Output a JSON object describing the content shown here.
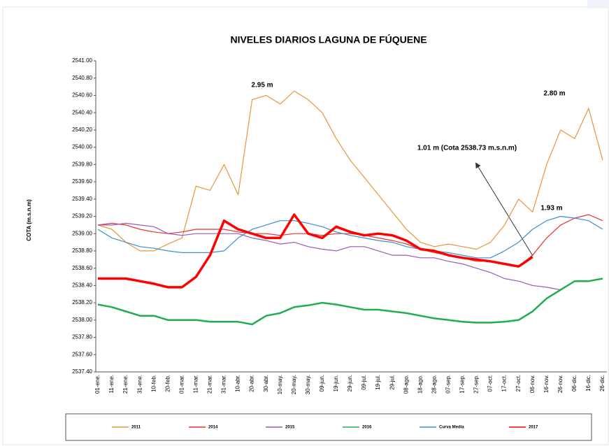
{
  "chart_data": {
    "type": "line",
    "title": "NIVELES DIARIOS LAGUNA DE FÚQUENE",
    "y_label": "COTA (m.s.n.m)",
    "annotations": [
      "2.95 m",
      "2.80 m",
      "1.01 m (Cota 2538.73 m.s.n.m)",
      "1.93 m"
    ],
    "categories": [
      "01-ene.",
      "11-ene.",
      "21-ene.",
      "31-ene.",
      "10-feb.",
      "20-feb.",
      "01-mar.",
      "11-mar.",
      "21-mar.",
      "31-mar.",
      "10-abr.",
      "20-abr.",
      "30-abr.",
      "10-may.",
      "20-may.",
      "30-may.",
      "09-jun.",
      "19-jun.",
      "29-jun.",
      "09-jul.",
      "19-jul.",
      "29-jul.",
      "08-ago.",
      "18-ago.",
      "28-ago.",
      "07-sep.",
      "17-sep.",
      "27-sep.",
      "07-oct.",
      "17-oct.",
      "27-oct.",
      "06-nov.",
      "16-nov.",
      "26-nov.",
      "06-dic.",
      "16-dic.",
      "26-dic."
    ],
    "ylim": [
      2537.4,
      2541.0
    ],
    "yticks": [
      {
        "value": 2537.4,
        "label": "2537.40"
      },
      {
        "value": 2537.6,
        "label": "2537.60"
      },
      {
        "value": 2537.8,
        "label": "2537.80"
      },
      {
        "value": 2538.0,
        "label": "2538.00"
      },
      {
        "value": 2538.2,
        "label": "2538.20"
      },
      {
        "value": 2538.4,
        "label": "2538.40"
      },
      {
        "value": 2538.6,
        "label": "2538.60"
      },
      {
        "value": 2538.8,
        "label": "2538.80"
      },
      {
        "value": 2539.0,
        "label": "2539.00"
      },
      {
        "value": 2539.2,
        "label": "2539.20"
      },
      {
        "value": 2539.4,
        "label": "2539.40"
      },
      {
        "value": 2539.6,
        "label": "2539.60"
      },
      {
        "value": 2539.8,
        "label": "2539.80"
      },
      {
        "value": 2540.0,
        "label": "2540.00"
      },
      {
        "value": 2540.2,
        "label": "2540.20"
      },
      {
        "value": 2540.4,
        "label": "2540.40"
      },
      {
        "value": 2540.6,
        "label": "2540.60"
      },
      {
        "value": 2540.8,
        "label": "2540.80"
      },
      {
        "value": 2541.0,
        "label": "2541.00"
      }
    ],
    "grid": false,
    "legend": "bottom",
    "series": [
      {
        "name": "2011",
        "color": "#e8963c",
        "width": 1.2,
        "values": [
          2539.1,
          2539.05,
          2538.9,
          2538.8,
          2538.8,
          2538.88,
          2538.95,
          2539.55,
          2539.5,
          2539.8,
          2539.45,
          2540.55,
          2540.6,
          2540.5,
          2540.65,
          2540.55,
          2540.4,
          2540.1,
          2539.85,
          2539.65,
          2539.45,
          2539.25,
          2539.05,
          2538.9,
          2538.85,
          2538.88,
          2538.85,
          2538.82,
          2538.9,
          2539.1,
          2539.4,
          2539.25,
          2539.8,
          2540.2,
          2540.1,
          2540.45,
          2539.85
        ]
      },
      {
        "name": "2014",
        "color": "#e8312e",
        "width": 1.2,
        "values": [
          2539.1,
          2539.12,
          2539.1,
          2539.05,
          2539.02,
          2539.0,
          2539.02,
          2539.05,
          2539.05,
          2539.05,
          2539.02,
          2539.0,
          2539.0,
          2538.98,
          2539.0,
          2539.0,
          2538.98,
          2539.0,
          2539.0,
          2538.98,
          2538.95,
          2538.92,
          2538.88,
          2538.82,
          2538.78,
          2538.75,
          2538.72,
          2538.68,
          2538.68,
          2538.65,
          2538.62,
          2538.75,
          2538.95,
          2539.1,
          2539.18,
          2539.22,
          2539.15
        ]
      },
      {
        "name": "2015",
        "color": "#9b59b6",
        "width": 1.2,
        "values": [
          2539.1,
          2539.1,
          2539.12,
          2539.1,
          2539.08,
          2539.0,
          2538.98,
          2539.0,
          2539.0,
          2539.0,
          2539.0,
          2538.95,
          2538.92,
          2538.88,
          2538.9,
          2538.85,
          2538.82,
          2538.8,
          2538.85,
          2538.85,
          2538.8,
          2538.75,
          2538.75,
          2538.72,
          2538.72,
          2538.68,
          2538.65,
          2538.6,
          2538.55,
          2538.48,
          2538.45,
          2538.4,
          2538.38,
          2538.35,
          null,
          null,
          null
        ]
      },
      {
        "name": "2016",
        "color": "#1fae52",
        "width": 2.5,
        "values": [
          2538.18,
          2538.15,
          2538.1,
          2538.05,
          2538.05,
          2538.0,
          2538.0,
          2538.0,
          2537.98,
          2537.98,
          2537.98,
          2537.95,
          2538.05,
          2538.08,
          2538.15,
          2538.17,
          2538.2,
          2538.18,
          2538.15,
          2538.12,
          2538.12,
          2538.1,
          2538.08,
          2538.05,
          2538.02,
          2538.0,
          2537.98,
          2537.97,
          2537.97,
          2537.98,
          2538.0,
          2538.1,
          2538.25,
          2538.35,
          2538.45,
          2538.45,
          2538.48
        ]
      },
      {
        "name": "Curva Media",
        "color": "#3b8fd0",
        "width": 1.2,
        "values": [
          2539.05,
          2538.95,
          2538.9,
          2538.85,
          2538.83,
          2538.8,
          2538.78,
          2538.78,
          2538.78,
          2538.8,
          2538.95,
          2539.05,
          2539.1,
          2539.15,
          2539.15,
          2539.12,
          2539.08,
          2539.02,
          2538.98,
          2538.95,
          2538.92,
          2538.9,
          2538.85,
          2538.82,
          2538.8,
          2538.78,
          2538.75,
          2538.72,
          2538.72,
          2538.8,
          2538.9,
          2539.05,
          2539.15,
          2539.2,
          2539.18,
          2539.15,
          2539.05
        ]
      },
      {
        "name": "2017",
        "color": "#ff0000",
        "width": 3.5,
        "values": [
          2538.48,
          2538.48,
          2538.48,
          2538.45,
          2538.42,
          2538.38,
          2538.38,
          2538.5,
          2538.75,
          2539.15,
          2539.05,
          2539.0,
          2538.95,
          2538.95,
          2539.22,
          2539.0,
          2538.95,
          2539.08,
          2539.02,
          2538.98,
          2539.0,
          2538.98,
          2538.92,
          2538.82,
          2538.8,
          2538.75,
          2538.72,
          2538.7,
          2538.68,
          2538.65,
          2538.62,
          2538.73,
          null,
          null,
          null,
          null,
          null
        ]
      }
    ]
  }
}
